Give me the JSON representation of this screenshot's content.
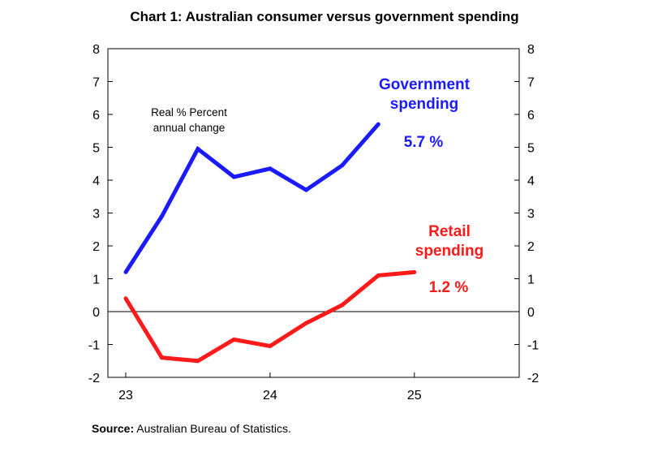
{
  "chart_data": {
    "type": "line",
    "title": "Chart 1: Australian consumer versus government spending",
    "xlabel": "",
    "ylabel": "",
    "annotation_lines": [
      "Real % Percent",
      "annual change"
    ],
    "x_ticks": [
      "23",
      "24",
      "25"
    ],
    "x_range": [
      23.0,
      25.85
    ],
    "ylim": [
      -2,
      8
    ],
    "y_ticks_left": [
      "8",
      "7",
      "6",
      "5",
      "4",
      "3",
      "2",
      "1",
      "0",
      "-1",
      "-2"
    ],
    "y_ticks_right": [
      "8",
      "7",
      "6",
      "5",
      "4",
      "3",
      "2",
      "1",
      "0",
      "-1",
      "-2"
    ],
    "grid": false,
    "zero_line": true,
    "series": [
      {
        "name_lines": [
          "Government",
          "spending"
        ],
        "color": "#1a1aff",
        "end_label": "5.7 %",
        "x": [
          23.0,
          23.25,
          23.5,
          23.75,
          24.0,
          24.25,
          24.5,
          24.75
        ],
        "values": [
          1.2,
          2.9,
          4.95,
          4.1,
          4.35,
          3.7,
          4.45,
          5.7
        ]
      },
      {
        "name_lines": [
          "Retail",
          "spending"
        ],
        "color": "#ff1a1a",
        "end_label": "1.2 %",
        "x": [
          23.0,
          23.25,
          23.5,
          23.75,
          24.0,
          24.25,
          24.5,
          24.75,
          25.0
        ],
        "values": [
          0.4,
          -1.4,
          -1.5,
          -0.85,
          -1.05,
          -0.35,
          0.2,
          1.1,
          1.2
        ]
      }
    ]
  },
  "source": {
    "label": "Source:",
    "text": " Australian Bureau of Statistics."
  }
}
